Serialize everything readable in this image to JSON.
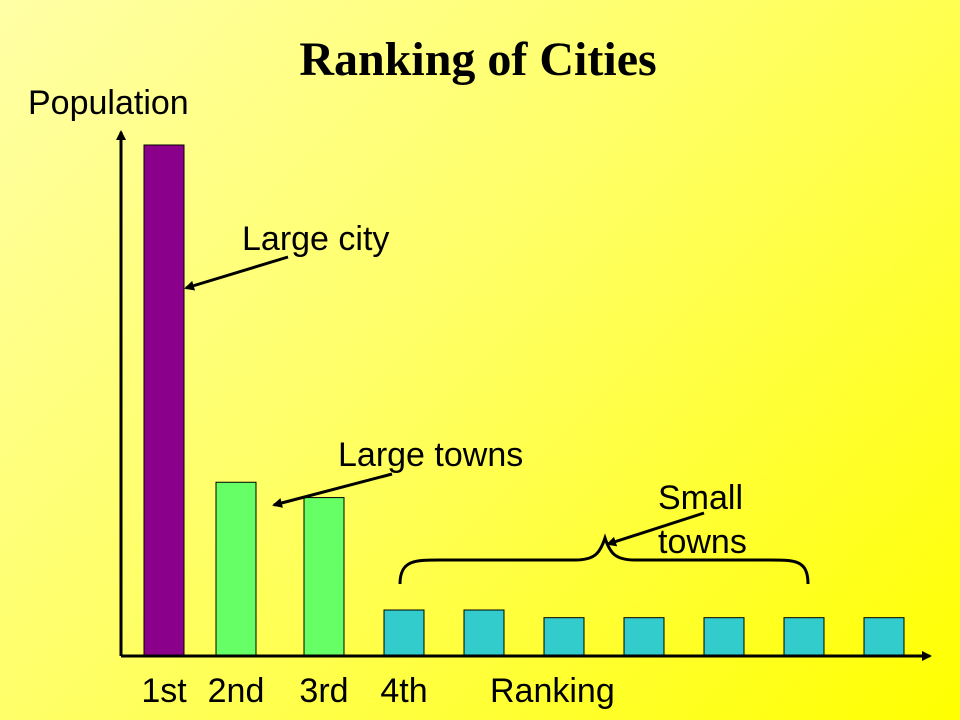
{
  "chart_data": {
    "type": "bar",
    "title": "Ranking of Cities",
    "ylabel": "Population",
    "xlabel": "Ranking",
    "categories": [
      "1st",
      "2nd",
      "3rd",
      "4th",
      "",
      "",
      "",
      "",
      "",
      ""
    ],
    "values": [
      100,
      34,
      31,
      9,
      9,
      7.5,
      7.5,
      7.5,
      7.5,
      7.5
    ],
    "ylim": [
      0,
      110
    ],
    "bar_colors": [
      "#8b008b",
      "#66ff66",
      "#66ff66",
      "#33cccc",
      "#33cccc",
      "#33cccc",
      "#33cccc",
      "#33cccc",
      "#33cccc",
      "#33cccc"
    ],
    "grid": false,
    "legend": "none",
    "annotations": {
      "large_city": "Large city",
      "large_towns": "Large towns",
      "small_towns_line1": "Small",
      "small_towns_line2": "towns"
    }
  }
}
